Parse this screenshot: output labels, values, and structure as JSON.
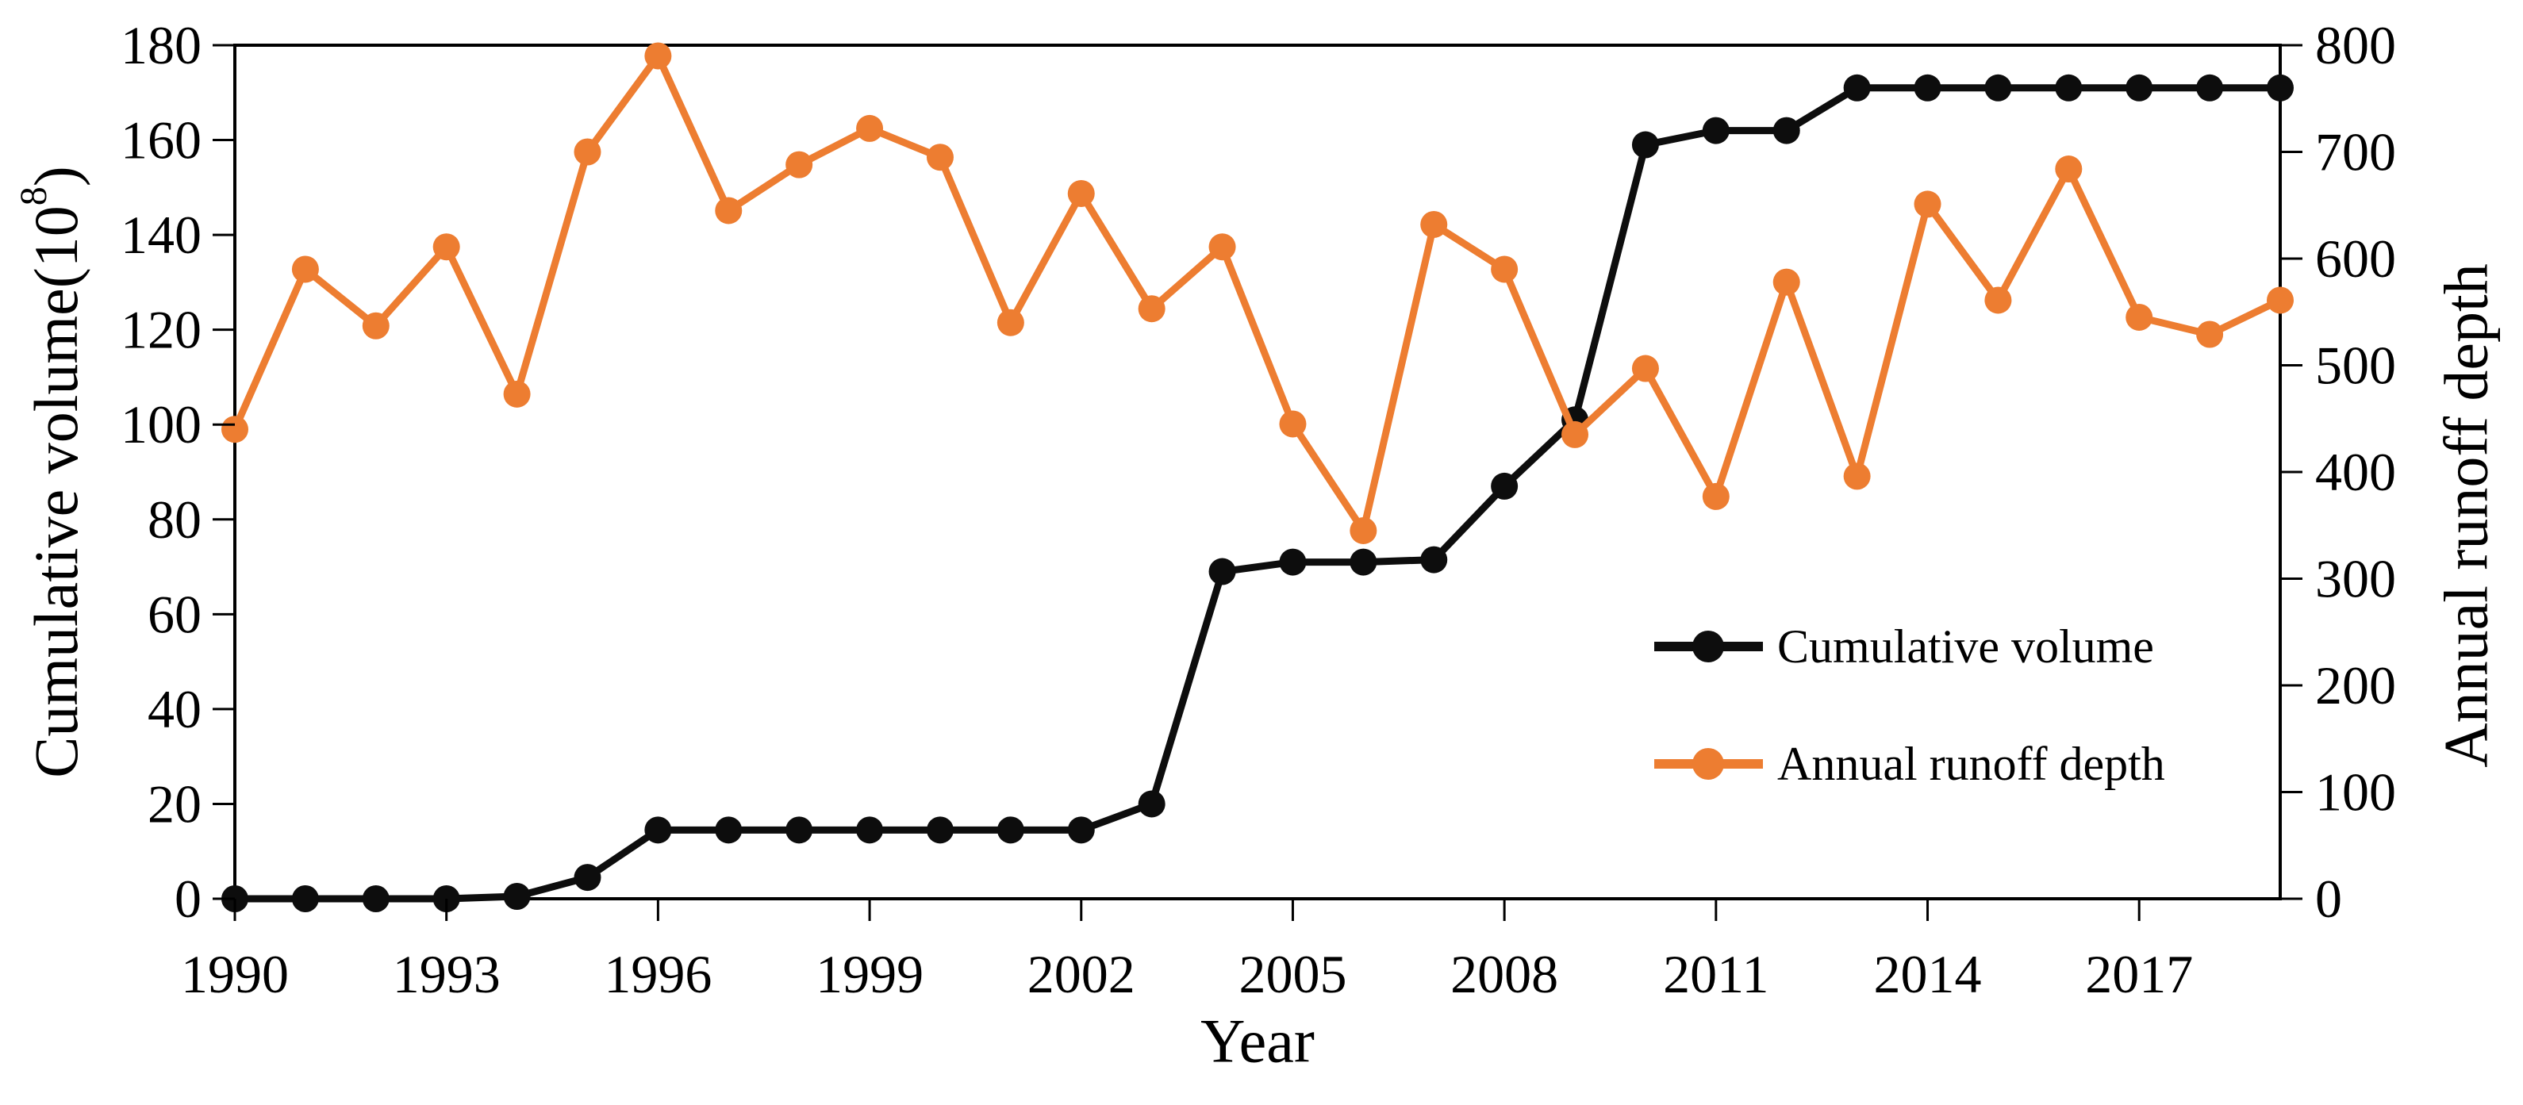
{
  "figure": {
    "background": "#ffffff",
    "text_color": "#000000"
  },
  "left_axis": {
    "title_main": "Cumulative volume(10",
    "title_sup": "8",
    "title_end": ")",
    "ticks": [
      0,
      20,
      40,
      60,
      80,
      100,
      120,
      140,
      160,
      180
    ],
    "min": 0,
    "max": 180
  },
  "right_axis": {
    "title": "Annual runoff depth",
    "ticks": [
      0,
      100,
      200,
      300,
      400,
      500,
      600,
      700,
      800
    ],
    "min": 0,
    "max": 800
  },
  "x_axis": {
    "title": "Year",
    "tick_years": [
      1990,
      1993,
      1996,
      1999,
      2002,
      2005,
      2008,
      2011,
      2014,
      2017
    ],
    "min": 1990,
    "max": 2019
  },
  "legend": {
    "items": [
      {
        "label": "Cumulative volume",
        "color": "#0D0D0D"
      },
      {
        "label": "Annual runoff depth",
        "color": "#ED7D31"
      }
    ]
  },
  "chart_data": {
    "type": "line",
    "title": "",
    "xlabel": "Year",
    "ylabel_left": "Cumulative volume(10^8)",
    "ylabel_right": "Annual runoff depth",
    "x": [
      1990,
      1991,
      1992,
      1993,
      1994,
      1995,
      1996,
      1997,
      1998,
      1999,
      2000,
      2001,
      2002,
      2003,
      2004,
      2005,
      2006,
      2007,
      2008,
      2009,
      2010,
      2011,
      2012,
      2013,
      2014,
      2015,
      2016,
      2017,
      2018,
      2019
    ],
    "series": [
      {
        "name": "Cumulative volume",
        "axis": "left",
        "color": "#0D0D0D",
        "marker": "circle",
        "values": [
          0,
          0,
          0,
          0,
          0.5,
          4.5,
          14.5,
          14.5,
          14.5,
          14.5,
          14.5,
          14.5,
          14.5,
          20,
          69,
          71,
          71,
          71.5,
          87,
          101,
          159,
          162,
          162,
          171,
          171,
          171,
          171,
          171,
          171,
          171
        ]
      },
      {
        "name": "Annual runoff depth",
        "axis": "right",
        "color": "#ED7D31",
        "marker": "circle",
        "values": [
          440,
          590,
          537,
          611,
          473,
          700,
          790,
          645,
          688,
          722,
          695,
          540,
          661,
          553,
          611,
          445,
          345,
          632,
          590,
          435,
          497,
          377,
          578,
          396,
          651,
          561,
          684,
          545,
          529,
          561
        ]
      }
    ],
    "ylim_left": [
      0,
      180
    ],
    "ylim_right": [
      0,
      800
    ],
    "grid": false,
    "legend_position": "inside-right-center"
  }
}
